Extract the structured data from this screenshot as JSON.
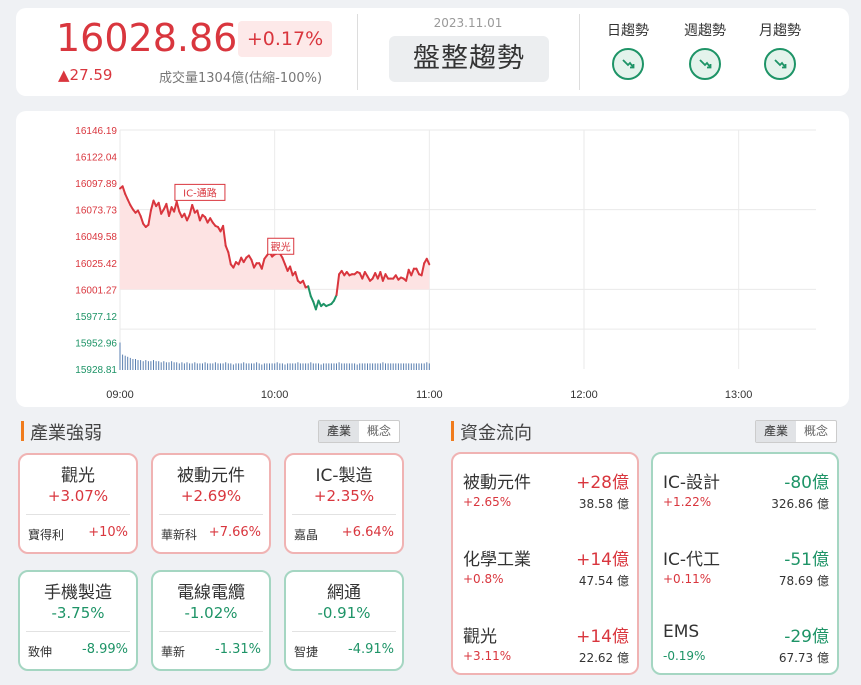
{
  "header": {
    "index_value": "16028.86",
    "change_pct": "+0.17%",
    "change_pts": "▲27.59",
    "volume_text": "成交量1304億(估縮-100%)",
    "date": "2023.11.01",
    "trend_label": "盤整趨勢",
    "trends": [
      {
        "label": "日趨勢",
        "icon": "trend-down-icon"
      },
      {
        "label": "週趨勢",
        "icon": "trend-down-icon"
      },
      {
        "label": "月趨勢",
        "icon": "trend-down-icon"
      }
    ]
  },
  "chart_data": {
    "type": "line",
    "y_ticks": [
      "16146.19",
      "16122.04",
      "16097.89",
      "16073.73",
      "16049.58",
      "16025.42",
      "16001.27",
      "15977.12",
      "15952.96",
      "15928.81"
    ],
    "reference": 16001.27,
    "ylim": [
      15928.81,
      16146.19
    ],
    "x_ticks": [
      "09:00",
      "10:00",
      "11:00",
      "12:00",
      "13:00"
    ],
    "annotations": [
      {
        "text": "IC-通路",
        "t": 12,
        "v": 16094
      },
      {
        "text": "觀光",
        "t": 48,
        "v": 16045
      }
    ],
    "series": [
      {
        "values": [
          [
            0,
            16093
          ],
          [
            1,
            16095
          ],
          [
            2,
            16088
          ],
          [
            3,
            16083
          ],
          [
            4,
            16078
          ],
          [
            5,
            16074
          ],
          [
            6,
            16071
          ],
          [
            7,
            16073
          ],
          [
            8,
            16068
          ],
          [
            9,
            16061
          ],
          [
            10,
            16058
          ],
          [
            11,
            16060
          ],
          [
            12,
            16073
          ],
          [
            13,
            16082
          ],
          [
            14,
            16077
          ],
          [
            15,
            16080
          ],
          [
            16,
            16070
          ],
          [
            17,
            16074
          ],
          [
            18,
            16079
          ],
          [
            19,
            16068
          ],
          [
            20,
            16076
          ],
          [
            21,
            16072
          ],
          [
            22,
            16081
          ],
          [
            23,
            16072
          ],
          [
            24,
            16067
          ],
          [
            25,
            16070
          ],
          [
            26,
            16064
          ],
          [
            27,
            16069
          ],
          [
            28,
            16078
          ],
          [
            29,
            16071
          ],
          [
            30,
            16073
          ],
          [
            31,
            16064
          ],
          [
            32,
            16069
          ],
          [
            33,
            16067
          ],
          [
            34,
            16062
          ],
          [
            35,
            16066
          ],
          [
            36,
            16062
          ],
          [
            37,
            16059
          ],
          [
            38,
            16058
          ],
          [
            39,
            16054
          ],
          [
            40,
            16059
          ],
          [
            41,
            16041
          ],
          [
            42,
            16035
          ],
          [
            43,
            16024
          ],
          [
            44,
            16021
          ],
          [
            45,
            16026
          ],
          [
            46,
            16024
          ],
          [
            47,
            16030
          ],
          [
            48,
            16026
          ],
          [
            49,
            16030
          ],
          [
            50,
            16032
          ],
          [
            51,
            16028
          ],
          [
            52,
            16021
          ],
          [
            53,
            16025
          ],
          [
            54,
            16025
          ],
          [
            55,
            16020
          ],
          [
            56,
            16029
          ],
          [
            57,
            16032
          ],
          [
            58,
            16035
          ],
          [
            59,
            16031
          ],
          [
            60,
            16033
          ],
          [
            61,
            16034
          ],
          [
            62,
            16034
          ],
          [
            63,
            16030
          ],
          [
            64,
            16024
          ],
          [
            65,
            16018
          ],
          [
            66,
            16022
          ],
          [
            67,
            16014
          ],
          [
            68,
            16017
          ],
          [
            69,
            16009
          ],
          [
            70,
            16007
          ],
          [
            71,
            16009
          ],
          [
            72,
            16003
          ],
          [
            73,
            16004
          ],
          [
            74,
            15995
          ],
          [
            75,
            15990
          ],
          [
            76,
            15983
          ],
          [
            77,
            15991
          ],
          [
            78,
            15986
          ],
          [
            79,
            15988
          ],
          [
            80,
            15986
          ],
          [
            81,
            15987
          ],
          [
            82,
            15988
          ],
          [
            83,
            15991
          ],
          [
            84,
            15996
          ],
          [
            85,
            16015
          ],
          [
            86,
            16018
          ],
          [
            87,
            16014
          ],
          [
            88,
            16017
          ],
          [
            89,
            16014
          ],
          [
            90,
            16015
          ],
          [
            91,
            16015
          ],
          [
            92,
            16017
          ],
          [
            93,
            16016
          ],
          [
            94,
            16011
          ],
          [
            95,
            16017
          ],
          [
            96,
            16013
          ],
          [
            97,
            16009
          ],
          [
            98,
            16011
          ],
          [
            99,
            16016
          ],
          [
            100,
            16011
          ],
          [
            101,
            16017
          ],
          [
            102,
            16009
          ],
          [
            103,
            16015
          ],
          [
            104,
            16011
          ],
          [
            105,
            16011
          ],
          [
            106,
            16011
          ],
          [
            107,
            16014
          ],
          [
            108,
            16010
          ],
          [
            109,
            16012
          ],
          [
            110,
            16011
          ],
          [
            111,
            16009
          ],
          [
            112,
            16019
          ],
          [
            113,
            16014
          ],
          [
            114,
            16020
          ],
          [
            115,
            16020
          ],
          [
            116,
            16015
          ],
          [
            117,
            16014
          ],
          [
            118,
            16025
          ],
          [
            119,
            16029
          ],
          [
            120,
            16024
          ]
        ]
      }
    ],
    "volume": [
      25,
      14,
      13,
      12,
      11,
      10,
      10,
      9,
      9,
      8,
      9,
      8,
      8,
      9,
      8,
      8,
      7,
      8,
      7,
      7,
      8,
      7,
      7,
      6,
      7,
      6,
      7,
      6,
      6,
      7,
      6,
      6,
      6,
      7,
      6,
      6,
      6,
      7,
      6,
      6,
      6,
      7,
      6,
      6,
      5,
      6,
      6,
      6,
      7,
      6,
      6,
      6,
      6,
      7,
      6,
      5,
      6,
      6,
      6,
      6,
      6,
      7,
      6,
      6,
      5,
      6,
      6,
      6,
      6,
      7,
      6,
      6,
      6,
      6,
      7,
      6,
      6,
      6,
      5,
      6,
      6,
      6,
      6,
      6,
      6,
      7,
      6,
      6,
      6,
      6,
      6,
      6,
      5,
      6,
      6,
      6,
      6,
      6,
      6,
      6,
      6,
      6,
      7,
      6,
      6,
      6,
      6,
      6,
      6,
      6,
      6,
      6,
      6,
      6,
      6,
      6,
      6,
      6,
      6,
      7,
      6
    ]
  },
  "industry": {
    "title": "產業強弱",
    "toggle": [
      "產業",
      "概念"
    ],
    "items": [
      {
        "name": "觀光",
        "pct": "+3.07%",
        "stock": "寶得利",
        "stock_pct": "+10%",
        "dir": "up"
      },
      {
        "name": "被動元件",
        "pct": "+2.69%",
        "stock": "華新科",
        "stock_pct": "+7.66%",
        "dir": "up"
      },
      {
        "name": "IC-製造",
        "pct": "+2.35%",
        "stock": "嘉晶",
        "stock_pct": "+6.64%",
        "dir": "up"
      },
      {
        "name": "手機製造",
        "pct": "-3.75%",
        "stock": "致伸",
        "stock_pct": "-8.99%",
        "dir": "dn"
      },
      {
        "name": "電線電纜",
        "pct": "-1.02%",
        "stock": "華新",
        "stock_pct": "-1.31%",
        "dir": "dn"
      },
      {
        "name": "網通",
        "pct": "-0.91%",
        "stock": "智捷",
        "stock_pct": "-4.91%",
        "dir": "dn"
      }
    ]
  },
  "money_flow": {
    "title": "資金流向",
    "toggle": [
      "產業",
      "概念"
    ],
    "inflow": [
      {
        "name": "被動元件",
        "amount": "+28億",
        "pct": "+2.65%",
        "total": "38.58 億"
      },
      {
        "name": "化學工業",
        "amount": "+14億",
        "pct": "+0.8%",
        "total": "47.54 億"
      },
      {
        "name": "觀光",
        "amount": "+14億",
        "pct": "+3.11%",
        "total": "22.62 億"
      }
    ],
    "outflow": [
      {
        "name": "IC-設計",
        "amount": "-80億",
        "pct": "+1.22%",
        "total": "326.86 億"
      },
      {
        "name": "IC-代工",
        "amount": "-51億",
        "pct": "+0.11%",
        "total": "78.69 億"
      },
      {
        "name": "EMS",
        "amount": "-29億",
        "pct": "-0.19%",
        "total": "67.73 億"
      }
    ]
  },
  "colors": {
    "up": "#d9363e",
    "down": "#1e9467",
    "accent": "#f07c1e"
  }
}
